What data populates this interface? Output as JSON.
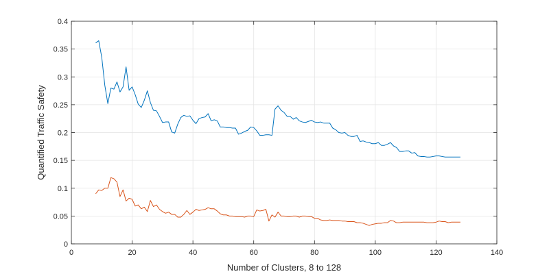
{
  "chart_data": {
    "type": "line",
    "title": "",
    "xlabel": "Number of Clusters, 8 to 128",
    "ylabel": "Quantified Traffic Safety",
    "xlim": [
      0,
      140
    ],
    "ylim": [
      0,
      0.4
    ],
    "xticks": [
      0,
      20,
      40,
      60,
      80,
      100,
      120,
      140
    ],
    "yticks": [
      0,
      0.05,
      0.1,
      0.15,
      0.2,
      0.25,
      0.3,
      0.35,
      0.4
    ],
    "xtick_labels": [
      "0",
      "20",
      "40",
      "60",
      "80",
      "100",
      "120",
      "140"
    ],
    "ytick_labels": [
      "0",
      "0.05",
      "0.1",
      "0.15",
      "0.2",
      "0.25",
      "0.3",
      "0.35",
      "0.4"
    ],
    "grid": true,
    "legend": "none",
    "series": [
      {
        "color": "#0072BD",
        "x": [
          8,
          9,
          10,
          11,
          12,
          13,
          14,
          15,
          16,
          17,
          18,
          19,
          20,
          21,
          22,
          23,
          24,
          25,
          26,
          27,
          28,
          29,
          30,
          31,
          32,
          33,
          34,
          35,
          36,
          37,
          38,
          39,
          40,
          41,
          42,
          43,
          44,
          45,
          46,
          47,
          48,
          49,
          50,
          51,
          52,
          53,
          54,
          55,
          56,
          57,
          58,
          59,
          60,
          61,
          62,
          63,
          64,
          65,
          66,
          67,
          68,
          69,
          70,
          71,
          72,
          73,
          74,
          75,
          76,
          77,
          78,
          79,
          80,
          81,
          82,
          83,
          84,
          85,
          86,
          87,
          88,
          89,
          90,
          91,
          92,
          93,
          94,
          95,
          96,
          97,
          98,
          99,
          100,
          101,
          102,
          103,
          104,
          105,
          106,
          107,
          108,
          109,
          110,
          111,
          112,
          113,
          114,
          115,
          116,
          117,
          118,
          119,
          120,
          121,
          122,
          123,
          124,
          125,
          126,
          127,
          128
        ],
        "y": [
          0.361,
          0.365,
          0.335,
          0.285,
          0.252,
          0.28,
          0.278,
          0.291,
          0.273,
          0.282,
          0.318,
          0.276,
          0.282,
          0.268,
          0.251,
          0.245,
          0.258,
          0.275,
          0.254,
          0.24,
          0.239,
          0.229,
          0.218,
          0.219,
          0.219,
          0.201,
          0.199,
          0.215,
          0.227,
          0.231,
          0.229,
          0.23,
          0.222,
          0.216,
          0.225,
          0.227,
          0.228,
          0.234,
          0.221,
          0.223,
          0.221,
          0.21,
          0.21,
          0.209,
          0.209,
          0.208,
          0.208,
          0.197,
          0.199,
          0.202,
          0.204,
          0.21,
          0.209,
          0.203,
          0.195,
          0.195,
          0.196,
          0.196,
          0.195,
          0.242,
          0.248,
          0.24,
          0.236,
          0.229,
          0.229,
          0.224,
          0.227,
          0.221,
          0.219,
          0.218,
          0.22,
          0.222,
          0.219,
          0.218,
          0.219,
          0.217,
          0.217,
          0.217,
          0.208,
          0.205,
          0.2,
          0.199,
          0.2,
          0.195,
          0.193,
          0.193,
          0.195,
          0.184,
          0.185,
          0.183,
          0.182,
          0.18,
          0.18,
          0.182,
          0.177,
          0.177,
          0.179,
          0.182,
          0.176,
          0.173,
          0.166,
          0.166,
          0.167,
          0.167,
          0.163,
          0.164,
          0.158,
          0.157,
          0.157,
          0.156,
          0.156,
          0.157,
          0.158,
          0.158,
          0.157,
          0.156,
          0.156,
          0.156,
          0.156,
          0.156,
          0.156
        ]
      },
      {
        "color": "#D95319",
        "x": [
          8,
          9,
          10,
          11,
          12,
          13,
          14,
          15,
          16,
          17,
          18,
          19,
          20,
          21,
          22,
          23,
          24,
          25,
          26,
          27,
          28,
          29,
          30,
          31,
          32,
          33,
          34,
          35,
          36,
          37,
          38,
          39,
          40,
          41,
          42,
          43,
          44,
          45,
          46,
          47,
          48,
          49,
          50,
          51,
          52,
          53,
          54,
          55,
          56,
          57,
          58,
          59,
          60,
          61,
          62,
          63,
          64,
          65,
          66,
          67,
          68,
          69,
          70,
          71,
          72,
          73,
          74,
          75,
          76,
          77,
          78,
          79,
          80,
          81,
          82,
          83,
          84,
          85,
          86,
          87,
          88,
          89,
          90,
          91,
          92,
          93,
          94,
          95,
          96,
          97,
          98,
          99,
          100,
          101,
          102,
          103,
          104,
          105,
          106,
          107,
          108,
          109,
          110,
          111,
          112,
          113,
          114,
          115,
          116,
          117,
          118,
          119,
          120,
          121,
          122,
          123,
          124,
          125,
          126,
          127,
          128
        ],
        "y": [
          0.09,
          0.097,
          0.096,
          0.1,
          0.1,
          0.119,
          0.117,
          0.111,
          0.085,
          0.097,
          0.077,
          0.082,
          0.08,
          0.068,
          0.07,
          0.063,
          0.066,
          0.058,
          0.078,
          0.067,
          0.07,
          0.062,
          0.058,
          0.055,
          0.057,
          0.053,
          0.053,
          0.048,
          0.048,
          0.053,
          0.06,
          0.053,
          0.057,
          0.062,
          0.06,
          0.061,
          0.062,
          0.065,
          0.063,
          0.063,
          0.059,
          0.054,
          0.052,
          0.052,
          0.05,
          0.05,
          0.049,
          0.049,
          0.049,
          0.048,
          0.05,
          0.05,
          0.049,
          0.061,
          0.059,
          0.06,
          0.062,
          0.041,
          0.052,
          0.048,
          0.057,
          0.05,
          0.05,
          0.049,
          0.049,
          0.05,
          0.05,
          0.048,
          0.05,
          0.05,
          0.049,
          0.049,
          0.046,
          0.046,
          0.043,
          0.042,
          0.042,
          0.043,
          0.042,
          0.042,
          0.042,
          0.041,
          0.041,
          0.04,
          0.04,
          0.04,
          0.038,
          0.038,
          0.037,
          0.035,
          0.033,
          0.035,
          0.036,
          0.037,
          0.037,
          0.038,
          0.038,
          0.042,
          0.041,
          0.038,
          0.038,
          0.039,
          0.039,
          0.039,
          0.039,
          0.039,
          0.039,
          0.039,
          0.039,
          0.038,
          0.038,
          0.038,
          0.039,
          0.041,
          0.04,
          0.04,
          0.038,
          0.039,
          0.039,
          0.039,
          0.039
        ]
      }
    ]
  }
}
